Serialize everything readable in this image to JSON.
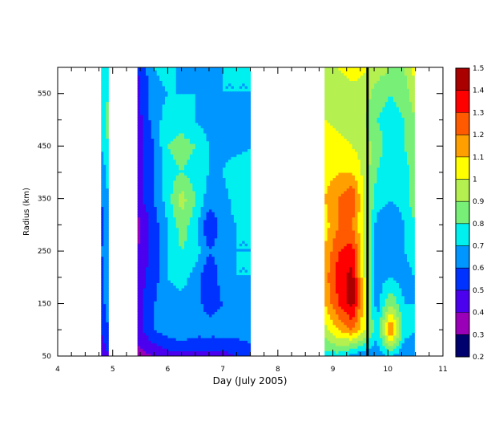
{
  "chart_data": {
    "type": "heatmap",
    "title": "",
    "xlabel": "Day (July 2005)",
    "ylabel": "Radius (km)",
    "xlim": [
      4,
      11
    ],
    "ylim": [
      50,
      600
    ],
    "x_ticks": [
      4,
      5,
      6,
      7,
      8,
      9,
      10,
      11
    ],
    "x_tick_labels": [
      "4",
      "5",
      "6",
      "7",
      "8",
      "9",
      "10",
      "11"
    ],
    "y_ticks": [
      50,
      150,
      250,
      350,
      450,
      550
    ],
    "y_tick_labels": [
      "50",
      "150",
      "250",
      "350",
      "450",
      "550"
    ],
    "grid": false,
    "vertical_line_x": 9.63,
    "colorbar": {
      "levels": [
        0.2,
        0.3,
        0.4,
        0.5,
        0.6,
        0.7,
        0.8,
        0.9,
        1.0,
        1.1,
        1.2,
        1.3,
        1.4,
        1.5
      ],
      "tick_labels": [
        "0.2",
        "0.3",
        "0.4",
        "0.5",
        "0.6",
        "0.7",
        "0.8",
        "0.9",
        "1",
        "1.1",
        "1.2",
        "1.3",
        "1.4",
        "1.5"
      ],
      "colors": [
        "#00006e",
        "#9a00b8",
        "#4b00ee",
        "#0032ff",
        "#0096ff",
        "#00f0f0",
        "#78f078",
        "#b4f050",
        "#ffff00",
        "#ffa000",
        "#ff5a00",
        "#ff0000",
        "#aa0000"
      ]
    },
    "y_grid": [
      50,
      100,
      150,
      200,
      250,
      300,
      350,
      400,
      450,
      500,
      550,
      600
    ],
    "data_segments": [
      {
        "name": "",
        "x": [
          4.79,
          4.92
        ],
        "values": [
          [
            0.4,
            0.5
          ],
          [
            0.5,
            0.6
          ],
          [
            0.55,
            0.65
          ],
          [
            0.55,
            0.65
          ],
          [
            0.6,
            0.65
          ],
          [
            0.55,
            0.65
          ],
          [
            0.6,
            0.7
          ],
          [
            0.6,
            0.75
          ],
          [
            0.7,
            0.8
          ],
          [
            0.75,
            0.85
          ],
          [
            0.7,
            0.8
          ],
          [
            0.7,
            0.8
          ]
        ]
      },
      {
        "name": "",
        "x": [
          5.45,
          5.75,
          6.0,
          6.25,
          6.5,
          6.75,
          7.0,
          7.25,
          7.5
        ],
        "values": [
          [
            0.35,
            0.4,
            0.45,
            0.45,
            0.45,
            0.45,
            0.45,
            0.5,
            0.55
          ],
          [
            0.45,
            0.6,
            0.65,
            0.7,
            0.65,
            0.65,
            0.65,
            0.65,
            0.65
          ],
          [
            0.45,
            0.6,
            0.65,
            0.65,
            0.65,
            0.55,
            0.6,
            0.65,
            0.7
          ],
          [
            0.45,
            0.55,
            0.7,
            0.75,
            0.65,
            0.5,
            0.65,
            0.7,
            0.7
          ],
          [
            0.4,
            0.55,
            0.7,
            0.8,
            0.75,
            0.6,
            0.65,
            0.7,
            0.7
          ],
          [
            0.35,
            0.55,
            0.7,
            0.85,
            0.75,
            0.5,
            0.65,
            0.7,
            0.7
          ],
          [
            0.45,
            0.6,
            0.75,
            0.95,
            0.8,
            0.65,
            0.65,
            0.75,
            0.75
          ],
          [
            0.45,
            0.6,
            0.75,
            0.8,
            0.75,
            0.7,
            0.7,
            0.8,
            0.75
          ],
          [
            0.45,
            0.6,
            0.8,
            0.85,
            0.8,
            0.7,
            0.65,
            0.65,
            0.7
          ],
          [
            0.45,
            0.65,
            0.75,
            0.75,
            0.7,
            0.65,
            0.7,
            0.65,
            0.65
          ],
          [
            0.45,
            0.65,
            0.7,
            0.7,
            0.7,
            0.65,
            0.7,
            0.7,
            0.7
          ],
          [
            0.5,
            0.7,
            0.75,
            0.65,
            0.6,
            0.65,
            0.7,
            0.7,
            0.7
          ]
        ]
      },
      {
        "name": "",
        "x": [
          8.85,
          9.1,
          9.35,
          9.6,
          9.8,
          10.05,
          10.3,
          10.48
        ],
        "values": [
          [
            0.75,
            0.75,
            0.65,
            0.6,
            0.65,
            0.7,
            0.6,
            0.65
          ],
          [
            0.95,
            1.1,
            1.2,
            1.0,
            0.7,
            1.25,
            0.75,
            0.7
          ],
          [
            1.1,
            1.3,
            1.45,
            1.0,
            0.65,
            0.9,
            0.7,
            0.7
          ],
          [
            1.15,
            1.35,
            1.45,
            0.95,
            0.65,
            0.7,
            0.65,
            0.7
          ],
          [
            1.1,
            1.3,
            1.35,
            0.95,
            0.6,
            0.65,
            0.7,
            0.75
          ],
          [
            1.05,
            1.2,
            1.2,
            0.95,
            0.65,
            0.6,
            0.7,
            0.8
          ],
          [
            1.1,
            1.2,
            1.3,
            0.95,
            0.75,
            0.7,
            0.75,
            0.85
          ],
          [
            1.05,
            1.1,
            1.1,
            0.95,
            0.8,
            0.7,
            0.75,
            0.85
          ],
          [
            1.1,
            1.05,
            1.0,
            0.95,
            0.85,
            0.75,
            0.8,
            0.9
          ],
          [
            1.0,
            0.95,
            0.9,
            0.9,
            0.8,
            0.75,
            0.8,
            0.9
          ],
          [
            1.0,
            0.9,
            0.9,
            0.95,
            0.85,
            0.8,
            0.85,
            0.95
          ],
          [
            1.0,
            1.0,
            1.1,
            1.0,
            0.95,
            0.9,
            0.9,
            1.05
          ]
        ]
      }
    ]
  }
}
